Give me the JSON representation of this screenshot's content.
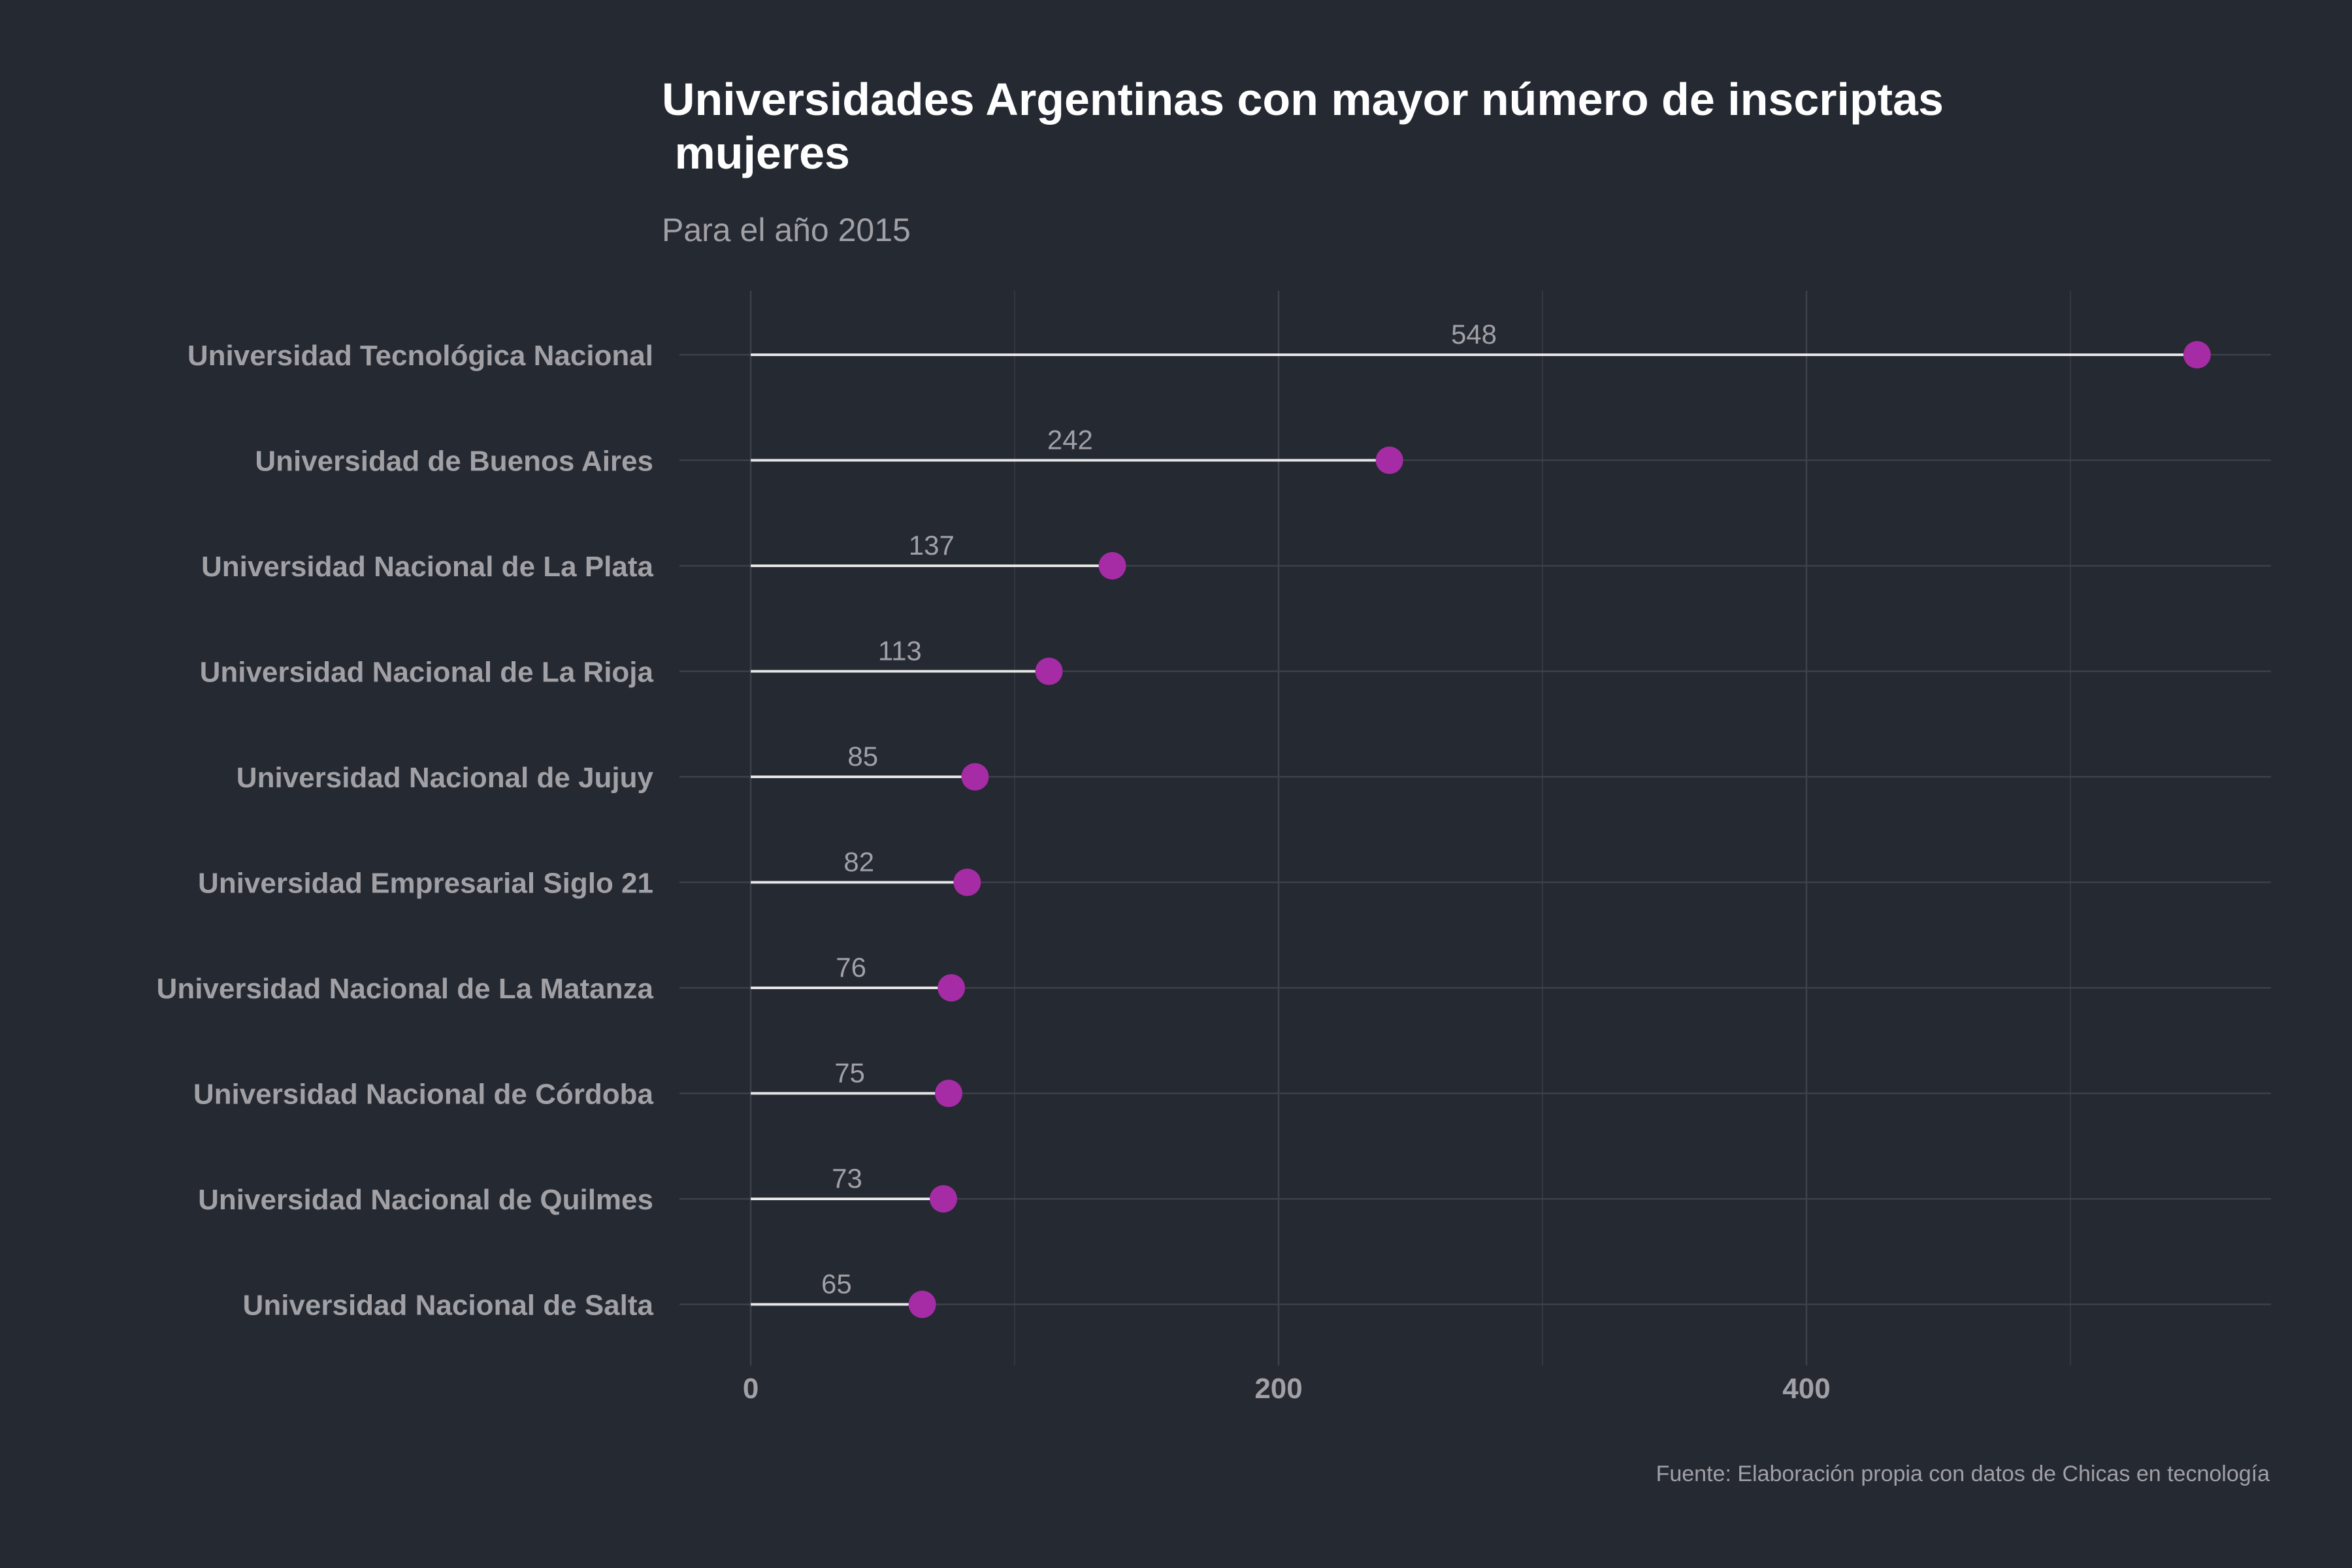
{
  "chart_data": {
    "type": "lollipop",
    "title_lines": [
      "Universidades Argentinas con mayor número de inscriptas",
      " mujeres"
    ],
    "subtitle": "Para el año 2015",
    "caption": "Fuente: Elaboración propia con datos de Chicas en tecnología",
    "xlabel": "",
    "ylabel": "",
    "xlim": [
      -27,
      576
    ],
    "x_ticks": [
      0,
      200,
      400
    ],
    "x_minor_gridlines": [
      100,
      300,
      500
    ],
    "grid": true,
    "categories": [
      "Universidad Tecnológica Nacional",
      "Universidad de Buenos Aires",
      "Universidad Nacional de La Plata",
      "Universidad Nacional de La Rioja",
      "Universidad Nacional de Jujuy",
      "Universidad Empresarial Siglo 21",
      "Universidad Nacional de La Matanza",
      "Universidad Nacional de Córdoba",
      "Universidad Nacional de Quilmes",
      "Universidad Nacional de Salta"
    ],
    "values": [
      548,
      242,
      137,
      113,
      85,
      82,
      76,
      75,
      73,
      65
    ],
    "colors": {
      "background": "#252932",
      "point": "#A62CA6",
      "stem": "#E6E6E6",
      "grid_major": "#3D414A",
      "grid_minor": "#343841",
      "title": "#FFFFFF",
      "text": "#A0A0A5"
    }
  }
}
